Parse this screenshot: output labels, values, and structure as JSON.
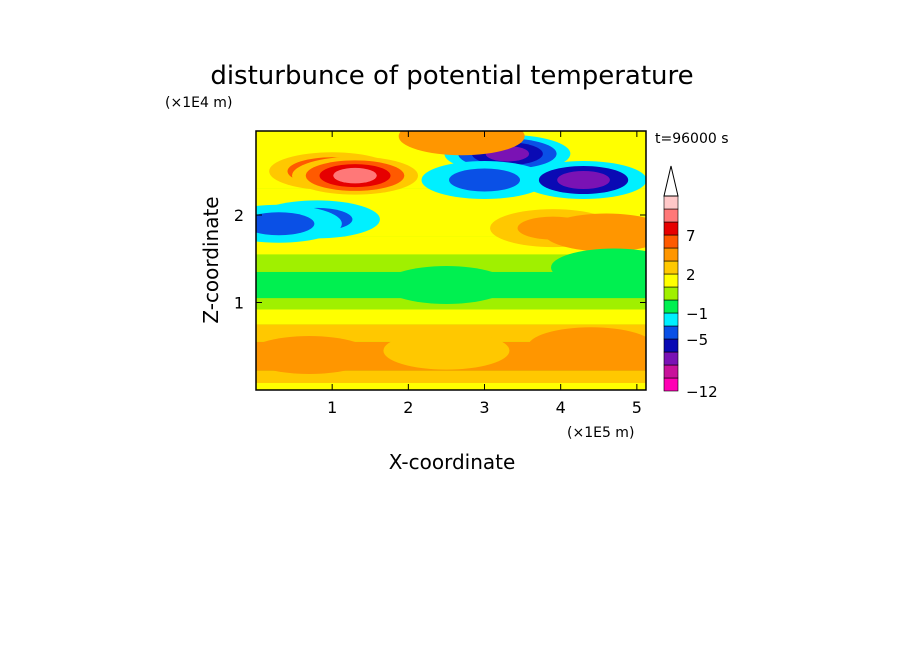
{
  "chart_data": {
    "type": "heatmap",
    "title": "disturbunce of potential temperature",
    "time_label": "t=96000 s",
    "xlabel": "X-coordinate",
    "ylabel": "Z-coordinate",
    "x_unit": "(×1E5 m)",
    "y_unit": "(×1E4 m)",
    "xlim": [
      0.0,
      5.12
    ],
    "ylim": [
      0.0,
      2.96
    ],
    "x_ticks": [
      {
        "value": 1,
        "label": "1"
      },
      {
        "value": 2,
        "label": "2"
      },
      {
        "value": 3,
        "label": "3"
      },
      {
        "value": 4,
        "label": "4"
      },
      {
        "value": 5,
        "label": "5"
      }
    ],
    "y_ticks": [
      {
        "value": 1,
        "label": "1"
      },
      {
        "value": 2,
        "label": "2"
      }
    ],
    "colorbar": {
      "levels": [
        -12,
        -11,
        -9,
        -7,
        -5,
        -3,
        -1,
        0,
        1,
        2,
        3,
        5,
        7,
        9,
        11
      ],
      "colors": [
        "#ff00b4",
        "#c8129b",
        "#7a12b4",
        "#0a0ab4",
        "#0a50e6",
        "#00f0ff",
        "#00f050",
        "#a0f000",
        "#ffff00",
        "#ffc800",
        "#ff9600",
        "#ff5a00",
        "#e60000",
        "#ff7878",
        "#ffc8c8"
      ],
      "labels": [
        {
          "value": -12,
          "label": "−12"
        },
        {
          "value": -5,
          "label": "−5"
        },
        {
          "value": -1,
          "label": "−1"
        },
        {
          "value": 2,
          "label": "2"
        },
        {
          "value": 7,
          "label": "7"
        }
      ],
      "extend": "max"
    },
    "features": [
      {
        "x": 1.0,
        "z": 2.5,
        "value": 7.5
      },
      {
        "x": 1.3,
        "z": 2.45,
        "value": 10
      },
      {
        "x": 0.8,
        "z": 1.95,
        "value": -5
      },
      {
        "x": 0.3,
        "z": 1.9,
        "value": -4
      },
      {
        "x": 3.3,
        "z": 2.7,
        "value": -9
      },
      {
        "x": 3.0,
        "z": 2.4,
        "value": -4
      },
      {
        "x": 4.3,
        "z": 2.4,
        "value": -8
      },
      {
        "x": 3.9,
        "z": 1.85,
        "value": 4
      },
      {
        "x": 4.6,
        "z": 1.8,
        "value": 3
      },
      {
        "x": 4.7,
        "z": 1.4,
        "value": -1
      },
      {
        "x": 2.5,
        "z": 1.2,
        "value": -0.5
      },
      {
        "x": 2.5,
        "z": 0.45,
        "value": 2.5
      },
      {
        "x": 0.7,
        "z": 0.4,
        "value": 3
      },
      {
        "x": 4.4,
        "z": 0.5,
        "value": 3
      },
      {
        "x": 2.7,
        "z": 2.9,
        "value": 3
      }
    ]
  }
}
